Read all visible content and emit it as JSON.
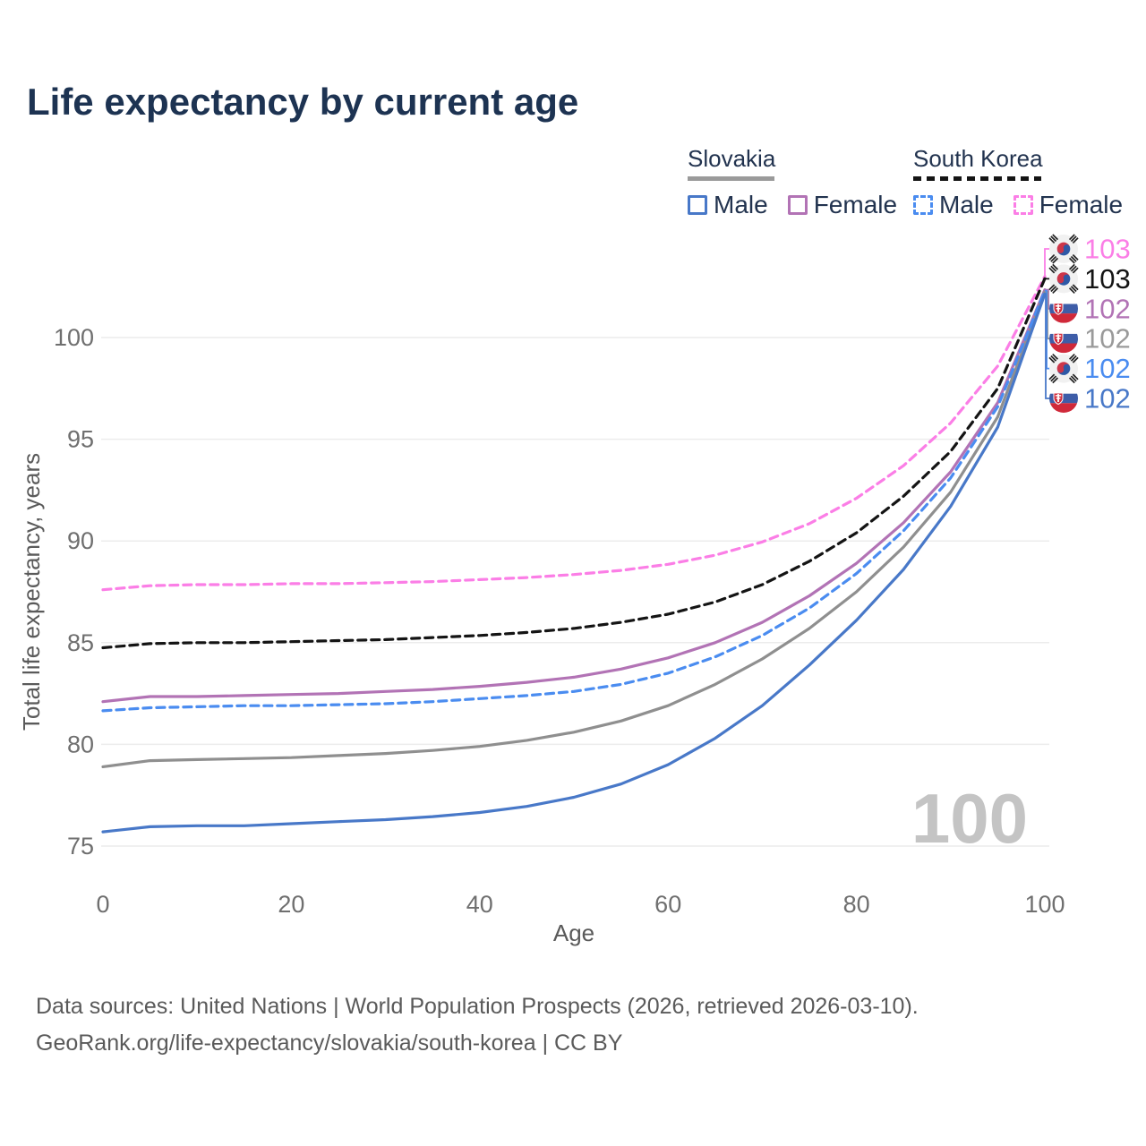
{
  "title": "Life expectancy by current age",
  "legend": {
    "groups": [
      {
        "name": "Slovakia",
        "line_style": "solid",
        "line_color": "#9a9a9a",
        "items": [
          {
            "label": "Male",
            "color": "#4878c8"
          },
          {
            "label": "Female",
            "color": "#b273b5"
          }
        ]
      },
      {
        "name": "South Korea",
        "line_style": "dashed",
        "line_color": "#141414",
        "items": [
          {
            "label": "Male",
            "color": "#4a8cf0"
          },
          {
            "label": "Female",
            "color": "#fb7ee6"
          }
        ]
      }
    ]
  },
  "chart_data": {
    "type": "line",
    "title": "Life expectancy by current age",
    "xlabel": "Age",
    "ylabel": "Total life expectancy, years",
    "watermark": "100",
    "xlim": [
      0,
      100
    ],
    "ylim": [
      75,
      103.5
    ],
    "xticks": [
      0,
      20,
      40,
      60,
      80,
      100
    ],
    "yticks": [
      75,
      80,
      85,
      90,
      95,
      100
    ],
    "grid": "horizontal",
    "legend_position": "top-right",
    "x": [
      0,
      5,
      10,
      15,
      20,
      25,
      30,
      35,
      40,
      45,
      50,
      55,
      60,
      65,
      70,
      75,
      80,
      85,
      90,
      95,
      100
    ],
    "series": [
      {
        "name": "South Korea Female",
        "country": "South Korea",
        "sex": "Female",
        "color": "#fb7ee6",
        "dash": true,
        "end_label": "103",
        "values": [
          87.6,
          87.8,
          87.85,
          87.85,
          87.9,
          87.9,
          87.95,
          88.0,
          88.1,
          88.2,
          88.35,
          88.55,
          88.85,
          89.3,
          89.95,
          90.85,
          92.1,
          93.7,
          95.8,
          98.6,
          103.0
        ]
      },
      {
        "name": "South Korea",
        "country": "South Korea",
        "sex": "All",
        "color": "#141414",
        "dash": true,
        "end_label": "103",
        "values": [
          84.75,
          84.95,
          85.0,
          85.0,
          85.05,
          85.1,
          85.15,
          85.25,
          85.35,
          85.5,
          85.7,
          86.0,
          86.4,
          87.0,
          87.85,
          89.0,
          90.4,
          92.2,
          94.4,
          97.5,
          102.9
        ]
      },
      {
        "name": "Slovakia Female",
        "country": "Slovakia",
        "sex": "Female",
        "color": "#b273b5",
        "dash": false,
        "end_label": "102",
        "values": [
          82.1,
          82.35,
          82.35,
          82.4,
          82.45,
          82.5,
          82.6,
          82.7,
          82.85,
          83.05,
          83.3,
          83.7,
          84.25,
          85.0,
          86.0,
          87.3,
          88.9,
          90.9,
          93.4,
          96.8,
          102.35
        ]
      },
      {
        "name": "Slovakia",
        "country": "Slovakia",
        "sex": "All",
        "color": "#8f8f8f",
        "dash": false,
        "end_label": "102",
        "values": [
          78.9,
          79.2,
          79.25,
          79.3,
          79.35,
          79.45,
          79.55,
          79.7,
          79.9,
          80.2,
          80.6,
          81.15,
          81.9,
          82.95,
          84.2,
          85.7,
          87.5,
          89.7,
          92.4,
          96.1,
          102.25
        ]
      },
      {
        "name": "South Korea Male",
        "country": "South Korea",
        "sex": "Male",
        "color": "#4a8cf0",
        "dash": true,
        "end_label": "102",
        "values": [
          81.65,
          81.8,
          81.85,
          81.9,
          81.9,
          81.95,
          82.0,
          82.1,
          82.25,
          82.4,
          82.6,
          82.95,
          83.5,
          84.3,
          85.35,
          86.7,
          88.4,
          90.5,
          93.1,
          96.6,
          102.3
        ]
      },
      {
        "name": "Slovakia Male",
        "country": "Slovakia",
        "sex": "Male",
        "color": "#4878c8",
        "dash": false,
        "end_label": "102",
        "values": [
          75.7,
          75.95,
          76.0,
          76.0,
          76.1,
          76.2,
          76.3,
          76.45,
          76.65,
          76.95,
          77.4,
          78.05,
          79.0,
          80.3,
          81.9,
          83.9,
          86.1,
          88.6,
          91.7,
          95.6,
          102.15
        ]
      }
    ]
  },
  "right_labels": [
    {
      "flag": "south-korea",
      "value": "103",
      "color": "#fb7ee6",
      "series": 0
    },
    {
      "flag": "south-korea",
      "value": "103",
      "color": "#141414",
      "series": 1
    },
    {
      "flag": "slovakia",
      "value": "102",
      "color": "#b273b5",
      "series": 2
    },
    {
      "flag": "slovakia",
      "value": "102",
      "color": "#9a9a9a",
      "series": 3
    },
    {
      "flag": "south-korea",
      "value": "102",
      "color": "#4a8cf0",
      "series": 4
    },
    {
      "flag": "slovakia",
      "value": "102",
      "color": "#4878c8",
      "series": 5
    }
  ],
  "footer": {
    "line1": "Data sources: United Nations | World Population Prospects (2026, retrieved 2026-03-10).",
    "line2": "GeoRank.org/life-expectancy/slovakia/south-korea | CC BY"
  }
}
